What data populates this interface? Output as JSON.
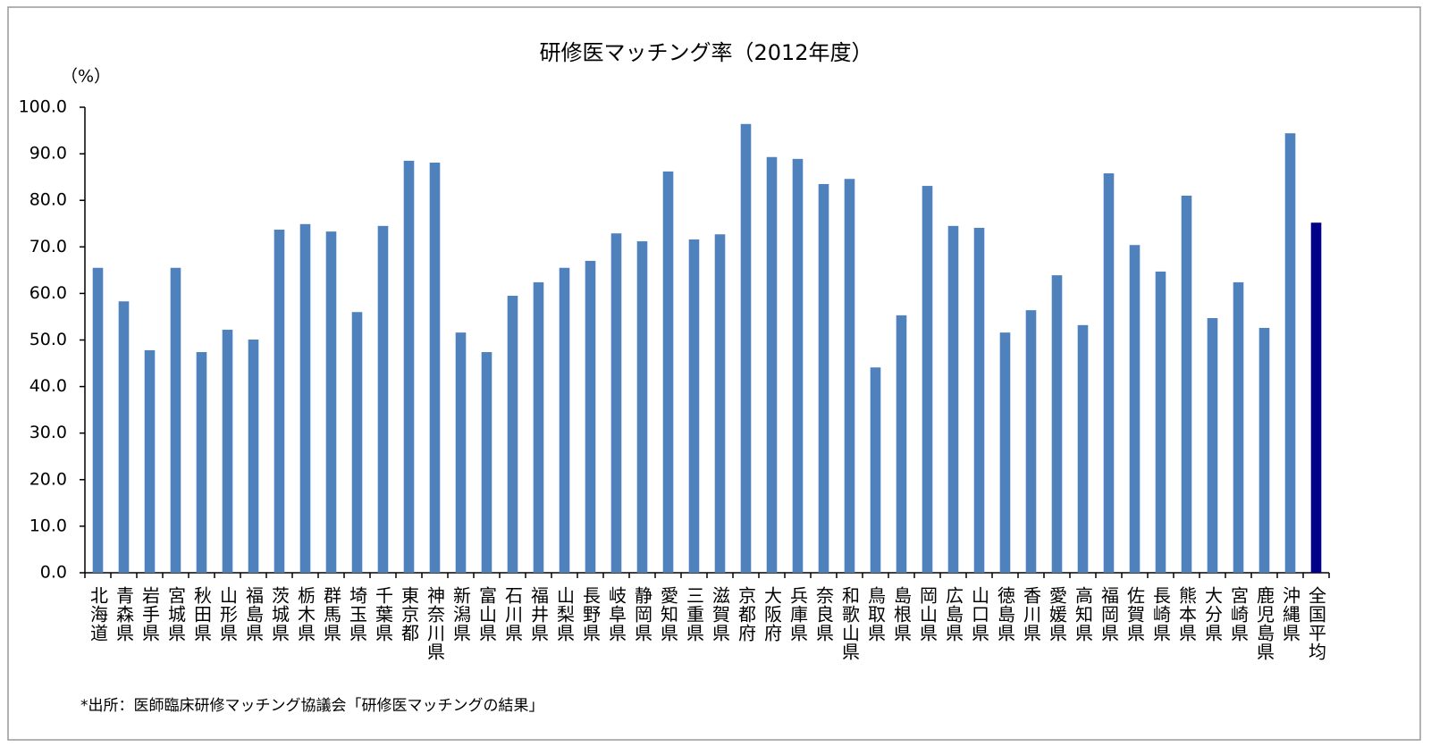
{
  "chart_data": {
    "type": "bar",
    "title": "研修医マッチング率（2012年度）",
    "y_label": "（%）",
    "note": "*出所：医師臨床研修マッチング協議会「研修医マッチングの結果」",
    "categories": [
      "北海道",
      "青森県",
      "岩手県",
      "宮城県",
      "秋田県",
      "山形県",
      "福島県",
      "茨城県",
      "栃木県",
      "群馬県",
      "埼玉県",
      "千葉県",
      "東京都",
      "神奈川県",
      "新潟県",
      "富山県",
      "石川県",
      "福井県",
      "山梨県",
      "長野県",
      "岐阜県",
      "静岡県",
      "愛知県",
      "三重県",
      "滋賀県",
      "京都府",
      "大阪府",
      "兵庫県",
      "奈良県",
      "和歌山県",
      "鳥取県",
      "島根県",
      "岡山県",
      "広島県",
      "山口県",
      "徳島県",
      "香川県",
      "愛媛県",
      "高知県",
      "福岡県",
      "佐賀県",
      "長崎県",
      "熊本県",
      "大分県",
      "宮崎県",
      "鹿児島県",
      "沖縄県",
      "全国平均"
    ],
    "values": [
      65.5,
      58.3,
      47.8,
      65.5,
      47.4,
      52.2,
      50.1,
      73.7,
      74.9,
      73.3,
      56.0,
      74.5,
      88.5,
      88.1,
      51.6,
      47.4,
      59.5,
      62.4,
      65.5,
      67.0,
      72.9,
      71.2,
      86.2,
      71.6,
      72.7,
      96.4,
      89.3,
      88.9,
      83.5,
      84.6,
      44.1,
      55.3,
      83.1,
      74.5,
      74.1,
      51.6,
      56.4,
      63.9,
      53.2,
      85.8,
      70.4,
      64.7,
      81.0,
      54.7,
      62.4,
      52.6,
      94.4,
      75.2
    ],
    "colors": [
      "#4f81bd",
      "#4f81bd",
      "#4f81bd",
      "#4f81bd",
      "#4f81bd",
      "#4f81bd",
      "#4f81bd",
      "#4f81bd",
      "#4f81bd",
      "#4f81bd",
      "#4f81bd",
      "#4f81bd",
      "#4f81bd",
      "#4f81bd",
      "#4f81bd",
      "#4f81bd",
      "#4f81bd",
      "#4f81bd",
      "#4f81bd",
      "#4f81bd",
      "#4f81bd",
      "#4f81bd",
      "#4f81bd",
      "#4f81bd",
      "#4f81bd",
      "#4f81bd",
      "#4f81bd",
      "#4f81bd",
      "#4f81bd",
      "#4f81bd",
      "#4f81bd",
      "#4f81bd",
      "#4f81bd",
      "#4f81bd",
      "#4f81bd",
      "#4f81bd",
      "#4f81bd",
      "#4f81bd",
      "#4f81bd",
      "#4f81bd",
      "#4f81bd",
      "#4f81bd",
      "#4f81bd",
      "#4f81bd",
      "#4f81bd",
      "#4f81bd",
      "#4f81bd",
      "#00008b"
    ],
    "ylim": [
      0,
      100
    ],
    "yticks": [
      {
        "value": 0,
        "label": "0.0"
      },
      {
        "value": 10,
        "label": "10.0"
      },
      {
        "value": 20,
        "label": "20.0"
      },
      {
        "value": 30,
        "label": "30.0"
      },
      {
        "value": 40,
        "label": "40.0"
      },
      {
        "value": 50,
        "label": "50.0"
      },
      {
        "value": 60,
        "label": "60.0"
      },
      {
        "value": 70,
        "label": "70.0"
      },
      {
        "value": 80,
        "label": "80.0"
      },
      {
        "value": 90,
        "label": "90.0"
      },
      {
        "value": 100,
        "label": "100.0"
      }
    ],
    "grid": false
  }
}
